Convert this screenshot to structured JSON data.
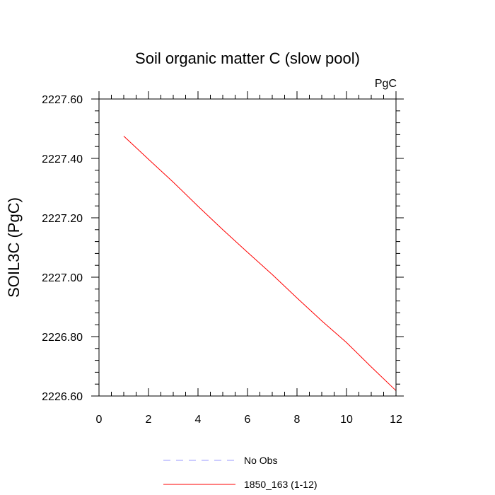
{
  "chart_data": {
    "type": "line",
    "title": "Soil organic matter C (slow pool)",
    "units_label": "PgC",
    "ylabel": "SOIL3C  (PgC)",
    "xlabel": "",
    "xlim": [
      0,
      12
    ],
    "ylim": [
      2226.6,
      2227.6
    ],
    "x_ticks": [
      0,
      2,
      4,
      6,
      8,
      10,
      12
    ],
    "x_tick_labels": [
      "0",
      "2",
      "4",
      "6",
      "8",
      "10",
      "12"
    ],
    "y_ticks": [
      2226.6,
      2226.8,
      2227.0,
      2227.2,
      2227.4,
      2227.6
    ],
    "y_tick_labels": [
      "2226.60",
      "2226.80",
      "2227.00",
      "2227.20",
      "2227.40",
      "2227.60"
    ],
    "grid": false,
    "legend_position": "bottom",
    "series": [
      {
        "name": "No Obs",
        "color": "#9999ff",
        "dash": "dashed",
        "x": [],
        "y": []
      },
      {
        "name": "1850_163 (1-12)",
        "color": "#ff0000",
        "dash": "solid",
        "x": [
          1,
          2,
          3,
          4,
          5,
          6,
          7,
          8,
          9,
          10,
          11,
          12
        ],
        "y": [
          2227.475,
          2227.397,
          2227.32,
          2227.239,
          2227.16,
          2227.084,
          2227.009,
          2226.93,
          2226.853,
          2226.78,
          2226.698,
          2226.618
        ]
      }
    ]
  }
}
